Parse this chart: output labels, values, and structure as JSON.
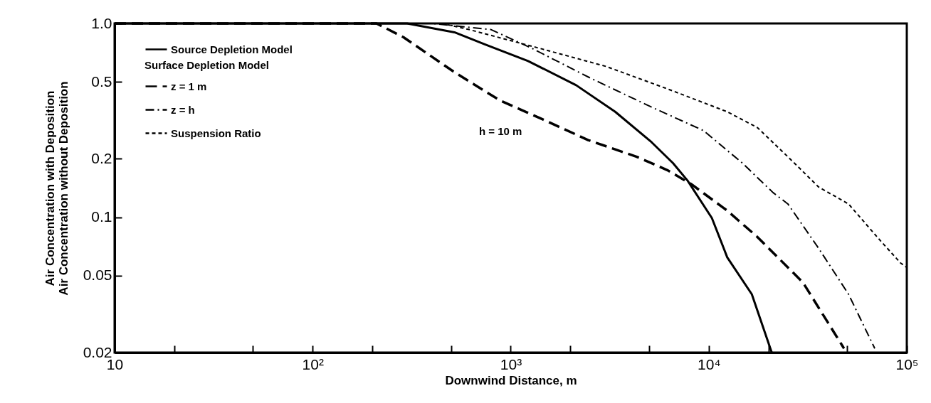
{
  "chart_data": {
    "type": "line",
    "xlabel": "Downwind Distance, m",
    "ylabel": "Air Concentration with Deposition\nAir Concentration without Deposition",
    "legend_title": "Surface Depletion Model",
    "annotations": [
      "h = 10 m"
    ],
    "log": "xy",
    "grid": false,
    "legend": "top left",
    "xlim": [
      10,
      100000
    ],
    "ylim": [
      0.02,
      1
    ],
    "xticks": [
      10,
      {
        "value": 20,
        "label": null
      },
      {
        "value": 50,
        "label": null
      },
      {
        "value": 100,
        "label": "10²"
      },
      {
        "value": 200,
        "label": null
      },
      {
        "value": 500,
        "label": null
      },
      {
        "value": 1000,
        "label": "10³"
      },
      {
        "value": 2000,
        "label": null
      },
      {
        "value": 5000,
        "label": null
      },
      {
        "value": 10000,
        "label": "10⁴"
      },
      {
        "value": 20000,
        "label": null
      },
      {
        "value": 50000,
        "label": null
      },
      {
        "value": 100000,
        "label": "10⁵"
      }
    ],
    "yticks": [
      0.02,
      0.05,
      0.1,
      0.2,
      0.5,
      {
        "value": 1,
        "label": "1.0"
      }
    ],
    "series": [
      {
        "name": "Source Depletion Model",
        "color": "#000000",
        "line_style": "solid",
        "x": [
          10,
          300,
          520,
          740,
          1224,
          2140,
          3370,
          5140,
          6600,
          7830,
          10370,
          12400,
          16500,
          20800
        ],
        "values": [
          1,
          1,
          0.9,
          0.78,
          0.64,
          0.48,
          0.35,
          0.244,
          0.19,
          0.154,
          0.099,
          0.062,
          0.04,
          0.02
        ]
      },
      {
        "name": "z = 1 m",
        "color": "#000000",
        "line_style": "dashed",
        "x": [
          10,
          210,
          287,
          520,
          884,
          1450,
          2460,
          4330,
          6170,
          8170,
          12400,
          17600,
          29900,
          48200
        ],
        "values": [
          1,
          1,
          0.85,
          0.56,
          0.4,
          0.32,
          0.25,
          0.205,
          0.175,
          0.148,
          0.108,
          0.079,
          0.046,
          0.021
        ]
      },
      {
        "name": "z = h",
        "color": "#000000",
        "line_style": "dashed",
        "x": [
          10,
          400,
          795,
          1260,
          2550,
          5140,
          9400,
          14800,
          21100,
          25100,
          35900,
          50800,
          68900
        ],
        "values": [
          1,
          1,
          0.93,
          0.75,
          0.52,
          0.37,
          0.28,
          0.19,
          0.134,
          0.117,
          0.069,
          0.04,
          0.021
        ]
      },
      {
        "name": "Suspension Ratio",
        "color": "#000000",
        "line_style": "dotted",
        "x": [
          10,
          450,
          617,
          1500,
          3030,
          6170,
          12400,
          17600,
          25100,
          35900,
          50800,
          72400,
          93000,
          100000
        ],
        "values": [
          1,
          1,
          0.93,
          0.73,
          0.6,
          0.46,
          0.35,
          0.29,
          0.205,
          0.143,
          0.117,
          0.077,
          0.058,
          0.055
        ]
      }
    ]
  }
}
